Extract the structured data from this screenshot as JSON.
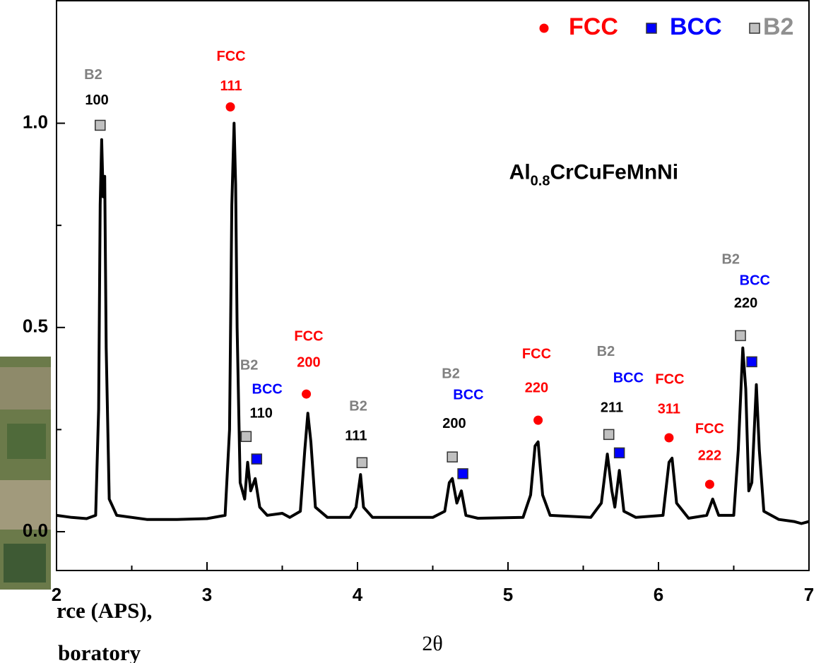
{
  "chart_data": {
    "type": "line",
    "xlabel": "2θ",
    "xlim": [
      2,
      7
    ],
    "ylim": [
      -0.095,
      1.3
    ],
    "xticks": [
      2,
      3,
      4,
      5,
      6,
      7
    ],
    "xminor_ticks": [
      2.5,
      3.5,
      4.5,
      5.5,
      6.5
    ],
    "yticks": [
      {
        "value": 0,
        "label": "0.0"
      },
      0.5,
      {
        "value": 1,
        "label": "1.0"
      }
    ],
    "yminor_ticks": [
      0.25,
      0.75
    ],
    "line": {
      "color": "#000000",
      "x": [
        2.0,
        2.1,
        2.2,
        2.26,
        2.28,
        2.29,
        2.3,
        2.31,
        2.32,
        2.33,
        2.35,
        2.4,
        2.6,
        2.8,
        3.0,
        3.12,
        3.15,
        3.165,
        3.18,
        3.19,
        3.2,
        3.22,
        3.25,
        3.27,
        3.29,
        3.32,
        3.35,
        3.4,
        3.5,
        3.55,
        3.62,
        3.65,
        3.67,
        3.69,
        3.72,
        3.8,
        3.95,
        3.99,
        4.02,
        4.04,
        4.1,
        4.5,
        4.58,
        4.61,
        4.63,
        4.66,
        4.69,
        4.72,
        4.8,
        5.1,
        5.15,
        5.18,
        5.2,
        5.23,
        5.28,
        5.55,
        5.62,
        5.66,
        5.69,
        5.71,
        5.74,
        5.77,
        5.85,
        6.03,
        6.07,
        6.09,
        6.12,
        6.2,
        6.32,
        6.36,
        6.4,
        6.5,
        6.53,
        6.56,
        6.58,
        6.6,
        6.62,
        6.65,
        6.67,
        6.7,
        6.8,
        6.9,
        6.95,
        7.0
      ],
      "y": [
        0.04,
        0.035,
        0.032,
        0.04,
        0.3,
        0.8,
        0.96,
        0.82,
        0.87,
        0.45,
        0.08,
        0.04,
        0.03,
        0.03,
        0.032,
        0.04,
        0.25,
        0.8,
        1.0,
        0.85,
        0.5,
        0.12,
        0.08,
        0.17,
        0.1,
        0.13,
        0.06,
        0.04,
        0.045,
        0.035,
        0.05,
        0.2,
        0.29,
        0.22,
        0.06,
        0.035,
        0.035,
        0.06,
        0.14,
        0.06,
        0.035,
        0.035,
        0.05,
        0.12,
        0.13,
        0.07,
        0.1,
        0.04,
        0.033,
        0.035,
        0.09,
        0.21,
        0.22,
        0.09,
        0.04,
        0.035,
        0.07,
        0.19,
        0.1,
        0.06,
        0.15,
        0.05,
        0.035,
        0.04,
        0.17,
        0.18,
        0.07,
        0.033,
        0.04,
        0.08,
        0.04,
        0.04,
        0.2,
        0.45,
        0.35,
        0.1,
        0.12,
        0.36,
        0.2,
        0.05,
        0.03,
        0.025,
        0.02,
        0.025
      ]
    },
    "markers": [
      {
        "name": "FCC",
        "color": "#ff0000",
        "shape": "circle",
        "x": [
          3.155,
          3.66,
          5.2,
          6.07,
          6.34
        ],
        "y": [
          1.04,
          0.337,
          0.273,
          0.23,
          0.116
        ]
      },
      {
        "name": "BCC",
        "color": "#0000ff",
        "shape": "square",
        "x": [
          3.33,
          4.7,
          5.74,
          6.62
        ],
        "y": [
          0.178,
          0.142,
          0.193,
          0.416
        ]
      },
      {
        "name": "B2",
        "color": "#c0c0c0",
        "shape": "square",
        "x": [
          2.29,
          3.26,
          4.03,
          4.63,
          5.67,
          6.545
        ],
        "y": [
          0.995,
          0.233,
          0.169,
          0.183,
          0.238,
          0.48
        ]
      }
    ],
    "annotations": [
      {
        "text": "B2",
        "color": "#808080",
        "x": 2.244,
        "y": 1.117
      },
      {
        "text": "100",
        "color": "#000000",
        "x": 2.268,
        "y": 1.055
      },
      {
        "text": "FCC",
        "color": "#ff0000",
        "x": 3.16,
        "y": 1.162
      },
      {
        "text": "111",
        "color": "#ff0000",
        "x": 3.16,
        "y": 1.09
      },
      {
        "text": "B2",
        "color": "#808080",
        "x": 3.28,
        "y": 0.406
      },
      {
        "text": "BCC",
        "color": "#0000ff",
        "x": 3.4,
        "y": 0.347
      },
      {
        "text": "110",
        "color": "#000000",
        "x": 3.36,
        "y": 0.288
      },
      {
        "text": "FCC",
        "color": "#ff0000",
        "x": 3.676,
        "y": 0.477
      },
      {
        "text": "200",
        "color": "#ff0000",
        "x": 3.676,
        "y": 0.413
      },
      {
        "text": "B2",
        "color": "#808080",
        "x": 4.005,
        "y": 0.306
      },
      {
        "text": "111",
        "color": "#000000",
        "x": 3.99,
        "y": 0.233
      },
      {
        "text": "B2",
        "color": "#808080",
        "x": 4.62,
        "y": 0.385
      },
      {
        "text": "BCC",
        "color": "#0000ff",
        "x": 4.737,
        "y": 0.333
      },
      {
        "text": "200",
        "color": "#000000",
        "x": 4.643,
        "y": 0.263
      },
      {
        "text": "FCC",
        "color": "#ff0000",
        "x": 5.19,
        "y": 0.434
      },
      {
        "text": "220",
        "color": "#ff0000",
        "x": 5.19,
        "y": 0.351
      },
      {
        "text": "B2",
        "color": "#808080",
        "x": 5.65,
        "y": 0.44
      },
      {
        "text": "BCC",
        "color": "#0000ff",
        "x": 5.8,
        "y": 0.375
      },
      {
        "text": "211",
        "color": "#000000",
        "x": 5.69,
        "y": 0.302
      },
      {
        "text": "FCC",
        "color": "#ff0000",
        "x": 6.075,
        "y": 0.371
      },
      {
        "text": "311",
        "color": "#ff0000",
        "x": 6.07,
        "y": 0.299
      },
      {
        "text": "FCC",
        "color": "#ff0000",
        "x": 6.34,
        "y": 0.25
      },
      {
        "text": "222",
        "color": "#ff0000",
        "x": 6.34,
        "y": 0.185
      },
      {
        "text": "B2",
        "color": "#808080",
        "x": 6.48,
        "y": 0.665
      },
      {
        "text": "BCC",
        "color": "#0000ff",
        "x": 6.64,
        "y": 0.613
      },
      {
        "text": "220",
        "color": "#000000",
        "x": 6.58,
        "y": 0.558
      }
    ],
    "compound": {
      "parts": [
        "Al",
        "0.8",
        "CrCuFeMnNi"
      ],
      "x": 5.57,
      "y": 0.877
    },
    "background_text": [
      "rce (APS),",
      "boratory"
    ]
  }
}
